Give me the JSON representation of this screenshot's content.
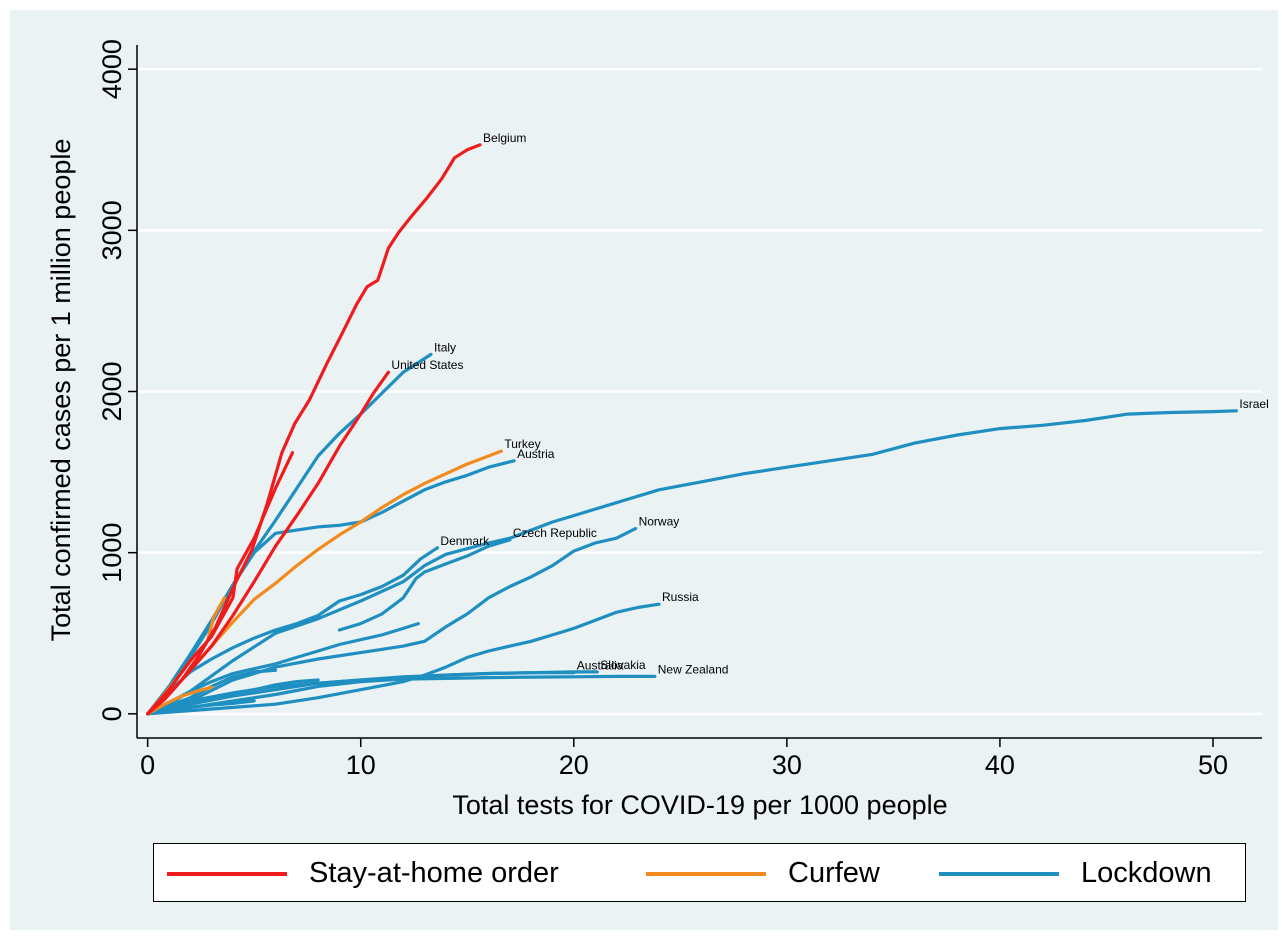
{
  "chart_data": {
    "type": "line",
    "xlabel": "Total tests for COVID-19 per 1000 people",
    "ylabel": "Total confirmed cases per 1 million people",
    "xlim": [
      -0.5,
      52.3
    ],
    "ylim": [
      -150,
      4150
    ],
    "xticks": [
      "0",
      "10",
      "20",
      "30",
      "40",
      "50"
    ],
    "yticks": [
      "0",
      "1000",
      "2000",
      "3000",
      "4000"
    ],
    "grid": "horizontal",
    "legend_position": "bottom",
    "colors": {
      "stay": "#ee1c1c",
      "curfew": "#f28a1e",
      "lockdown": "#1f8fc1",
      "background": "#eaf2f3",
      "grid": "#ffffff"
    },
    "legend": [
      {
        "key": "stay",
        "label": "Stay-at-home order"
      },
      {
        "key": "curfew",
        "label": "Curfew"
      },
      {
        "key": "lockdown",
        "label": "Lockdown"
      }
    ],
    "series": [
      {
        "name": "Belgium",
        "group": "stay",
        "label": "Belgium",
        "points": [
          [
            0,
            0
          ],
          [
            0.8,
            90
          ],
          [
            1.6,
            210
          ],
          [
            2.4,
            360
          ],
          [
            3.2,
            540
          ],
          [
            4.0,
            780
          ],
          [
            4.9,
            1020
          ],
          [
            5.6,
            1300
          ],
          [
            6.3,
            1620
          ],
          [
            6.9,
            1800
          ],
          [
            7.6,
            1950
          ],
          [
            8.4,
            2170
          ],
          [
            9.2,
            2380
          ],
          [
            9.8,
            2540
          ],
          [
            10.3,
            2650
          ],
          [
            10.8,
            2690
          ],
          [
            11.3,
            2890
          ],
          [
            11.8,
            2990
          ],
          [
            12.4,
            3090
          ],
          [
            13.1,
            3200
          ],
          [
            13.8,
            3320
          ],
          [
            14.4,
            3450
          ],
          [
            15.0,
            3500
          ],
          [
            15.6,
            3530
          ]
        ]
      },
      {
        "name": "United States",
        "group": "stay",
        "label": "United States",
        "points": [
          [
            0,
            0
          ],
          [
            1.0,
            120
          ],
          [
            2.0,
            270
          ],
          [
            3.0,
            420
          ],
          [
            4.0,
            610
          ],
          [
            5.0,
            820
          ],
          [
            6.0,
            1040
          ],
          [
            7.0,
            1230
          ],
          [
            8.0,
            1430
          ],
          [
            9.0,
            1660
          ],
          [
            10.0,
            1860
          ],
          [
            10.6,
            1990
          ],
          [
            11.3,
            2120
          ]
        ]
      },
      {
        "name": "Stay-at-home (2)",
        "group": "stay",
        "label": "",
        "points": [
          [
            0,
            0
          ],
          [
            1.0,
            150
          ],
          [
            2.0,
            330
          ],
          [
            3.0,
            480
          ],
          [
            4.0,
            720
          ],
          [
            4.2,
            900
          ],
          [
            5.0,
            1090
          ],
          [
            6.0,
            1400
          ],
          [
            6.8,
            1620
          ]
        ]
      },
      {
        "name": "Turkey",
        "group": "curfew",
        "label": "Turkey",
        "points": [
          [
            0,
            0
          ],
          [
            1,
            120
          ],
          [
            2,
            270
          ],
          [
            3,
            420
          ],
          [
            4,
            570
          ],
          [
            5,
            710
          ],
          [
            6,
            810
          ],
          [
            7,
            920
          ],
          [
            8,
            1020
          ],
          [
            9,
            1110
          ],
          [
            10,
            1190
          ],
          [
            11,
            1280
          ],
          [
            12,
            1360
          ],
          [
            13,
            1430
          ],
          [
            14,
            1490
          ],
          [
            15,
            1550
          ],
          [
            15.8,
            1590
          ],
          [
            16.6,
            1630
          ]
        ]
      },
      {
        "name": "Curfew (2)",
        "group": "curfew",
        "label": "",
        "points": [
          [
            0,
            0
          ],
          [
            0.7,
            110
          ],
          [
            1.5,
            240
          ],
          [
            2.2,
            360
          ],
          [
            2.8,
            450
          ],
          [
            3.1,
            600
          ],
          [
            3.6,
            720
          ]
        ]
      },
      {
        "name": "Curfew (3)",
        "group": "curfew",
        "label": "",
        "points": [
          [
            0,
            0
          ],
          [
            0.8,
            60
          ],
          [
            1.6,
            110
          ],
          [
            2.3,
            140
          ],
          [
            3.0,
            165
          ]
        ]
      },
      {
        "name": "Italy",
        "group": "lockdown",
        "label": "Italy",
        "points": [
          [
            0,
            0
          ],
          [
            1,
            170
          ],
          [
            2,
            370
          ],
          [
            3,
            580
          ],
          [
            4,
            800
          ],
          [
            5,
            1010
          ],
          [
            6,
            1200
          ],
          [
            7,
            1400
          ],
          [
            8,
            1600
          ],
          [
            9,
            1740
          ],
          [
            10,
            1860
          ],
          [
            11,
            1990
          ],
          [
            12,
            2120
          ],
          [
            13.3,
            2230
          ]
        ]
      },
      {
        "name": "Austria",
        "group": "lockdown",
        "label": "Austria",
        "points": [
          [
            0,
            0
          ],
          [
            1,
            160
          ],
          [
            2,
            350
          ],
          [
            3,
            560
          ],
          [
            4,
            800
          ],
          [
            5,
            1000
          ],
          [
            6,
            1120
          ],
          [
            7,
            1140
          ],
          [
            8,
            1160
          ],
          [
            9,
            1170
          ],
          [
            10,
            1190
          ],
          [
            11,
            1250
          ],
          [
            12,
            1320
          ],
          [
            13,
            1390
          ],
          [
            14,
            1440
          ],
          [
            15,
            1480
          ],
          [
            16,
            1530
          ],
          [
            17.2,
            1570
          ]
        ]
      },
      {
        "name": "Israel",
        "group": "lockdown",
        "label": "Israel",
        "points": [
          [
            0,
            0
          ],
          [
            2,
            140
          ],
          [
            4,
            330
          ],
          [
            6,
            500
          ],
          [
            8,
            590
          ],
          [
            10,
            700
          ],
          [
            12,
            820
          ],
          [
            13,
            920
          ],
          [
            14,
            990
          ],
          [
            16,
            1060
          ],
          [
            17,
            1090
          ],
          [
            18,
            1140
          ],
          [
            19,
            1190
          ],
          [
            20,
            1230
          ],
          [
            22,
            1310
          ],
          [
            24,
            1390
          ],
          [
            26,
            1440
          ],
          [
            28,
            1490
          ],
          [
            30,
            1530
          ],
          [
            32,
            1570
          ],
          [
            34,
            1610
          ],
          [
            36,
            1680
          ],
          [
            38,
            1730
          ],
          [
            40,
            1770
          ],
          [
            42,
            1790
          ],
          [
            44,
            1820
          ],
          [
            46,
            1860
          ],
          [
            48,
            1870
          ],
          [
            50,
            1875
          ],
          [
            51.1,
            1880
          ]
        ]
      },
      {
        "name": "Norway",
        "group": "lockdown",
        "label": "Norway",
        "points": [
          [
            0,
            0
          ],
          [
            2,
            80
          ],
          [
            4,
            210
          ],
          [
            6,
            290
          ],
          [
            8,
            340
          ],
          [
            10,
            380
          ],
          [
            12,
            420
          ],
          [
            13,
            450
          ],
          [
            14,
            540
          ],
          [
            15,
            620
          ],
          [
            16,
            720
          ],
          [
            17,
            790
          ],
          [
            18,
            850
          ],
          [
            19,
            920
          ],
          [
            20,
            1010
          ],
          [
            21,
            1060
          ],
          [
            22,
            1090
          ],
          [
            22.9,
            1150
          ]
        ]
      },
      {
        "name": "Denmark",
        "group": "lockdown",
        "label": "Denmark",
        "points": [
          [
            0,
            0
          ],
          [
            1,
            140
          ],
          [
            2,
            260
          ],
          [
            3,
            340
          ],
          [
            4,
            410
          ],
          [
            5,
            470
          ],
          [
            6,
            520
          ],
          [
            7,
            560
          ],
          [
            8,
            610
          ],
          [
            9,
            700
          ],
          [
            10,
            740
          ],
          [
            11,
            790
          ],
          [
            12,
            860
          ],
          [
            12.8,
            960
          ],
          [
            13.6,
            1030
          ]
        ]
      },
      {
        "name": "Czech Republic",
        "group": "lockdown",
        "label": "Czech Republic",
        "points": [
          [
            9.0,
            520
          ],
          [
            10,
            560
          ],
          [
            11,
            620
          ],
          [
            12,
            720
          ],
          [
            12.6,
            840
          ],
          [
            13,
            880
          ],
          [
            14,
            930
          ],
          [
            15,
            980
          ],
          [
            16,
            1040
          ],
          [
            17,
            1080
          ]
        ]
      },
      {
        "name": "Czech Republic (2)",
        "group": "lockdown",
        "label": "",
        "points": [
          [
            0,
            0
          ],
          [
            1,
            60
          ],
          [
            2,
            140
          ],
          [
            3,
            200
          ],
          [
            4,
            250
          ],
          [
            5,
            280
          ],
          [
            6,
            310
          ],
          [
            7,
            350
          ],
          [
            8,
            390
          ],
          [
            9,
            430
          ],
          [
            10,
            460
          ],
          [
            11,
            490
          ],
          [
            12,
            530
          ],
          [
            12.7,
            560
          ]
        ]
      },
      {
        "name": "Russia",
        "group": "lockdown",
        "label": "Russia",
        "points": [
          [
            0,
            0
          ],
          [
            2,
            20
          ],
          [
            4,
            40
          ],
          [
            6,
            60
          ],
          [
            8,
            100
          ],
          [
            10,
            150
          ],
          [
            12,
            200
          ],
          [
            13,
            240
          ],
          [
            14,
            290
          ],
          [
            15,
            350
          ],
          [
            16,
            390
          ],
          [
            17,
            420
          ],
          [
            18,
            450
          ],
          [
            19,
            490
          ],
          [
            20,
            530
          ],
          [
            21,
            580
          ],
          [
            22,
            630
          ],
          [
            23,
            660
          ],
          [
            24,
            680
          ]
        ]
      },
      {
        "name": "Slovakia",
        "group": "lockdown",
        "label": "Slovakia",
        "points": [
          [
            0,
            0
          ],
          [
            2,
            80
          ],
          [
            4,
            130
          ],
          [
            6,
            170
          ],
          [
            8,
            190
          ],
          [
            10,
            210
          ],
          [
            12,
            230
          ],
          [
            14,
            240
          ],
          [
            16,
            250
          ],
          [
            18,
            255
          ],
          [
            20,
            260
          ],
          [
            21.1,
            260
          ]
        ]
      },
      {
        "name": "Australia",
        "group": "lockdown",
        "label": "Australia",
        "points": [
          [
            0,
            0
          ],
          [
            2,
            60
          ],
          [
            4,
            110
          ],
          [
            6,
            150
          ],
          [
            8,
            190
          ],
          [
            10,
            210
          ],
          [
            12,
            225
          ],
          [
            14,
            240
          ],
          [
            16,
            250
          ],
          [
            18,
            255
          ],
          [
            20,
            255
          ]
        ]
      },
      {
        "name": "New Zealand",
        "group": "lockdown",
        "label": "New Zealand",
        "points": [
          [
            0,
            0
          ],
          [
            2,
            40
          ],
          [
            4,
            80
          ],
          [
            6,
            120
          ],
          [
            8,
            170
          ],
          [
            10,
            200
          ],
          [
            12,
            215
          ],
          [
            14,
            220
          ],
          [
            16,
            225
          ],
          [
            18,
            228
          ],
          [
            20,
            230
          ],
          [
            22,
            232
          ],
          [
            23.8,
            232
          ]
        ]
      },
      {
        "name": "Lockdown (a)",
        "group": "lockdown",
        "label": "",
        "points": [
          [
            0,
            0
          ],
          [
            1,
            50
          ],
          [
            2,
            100
          ],
          [
            3,
            170
          ],
          [
            4,
            230
          ],
          [
            5,
            260
          ],
          [
            6,
            270
          ]
        ]
      },
      {
        "name": "Lockdown (b)",
        "group": "lockdown",
        "label": "",
        "points": [
          [
            0,
            0
          ],
          [
            1,
            30
          ],
          [
            2,
            60
          ],
          [
            3,
            90
          ],
          [
            4,
            120
          ],
          [
            5,
            150
          ],
          [
            6,
            180
          ],
          [
            7,
            200
          ],
          [
            8,
            210
          ]
        ]
      },
      {
        "name": "Lockdown (c)",
        "group": "lockdown",
        "label": "",
        "points": [
          [
            0,
            0
          ],
          [
            1,
            20
          ],
          [
            2,
            40
          ],
          [
            3,
            55
          ],
          [
            4,
            65
          ],
          [
            5,
            80
          ]
        ]
      }
    ]
  }
}
